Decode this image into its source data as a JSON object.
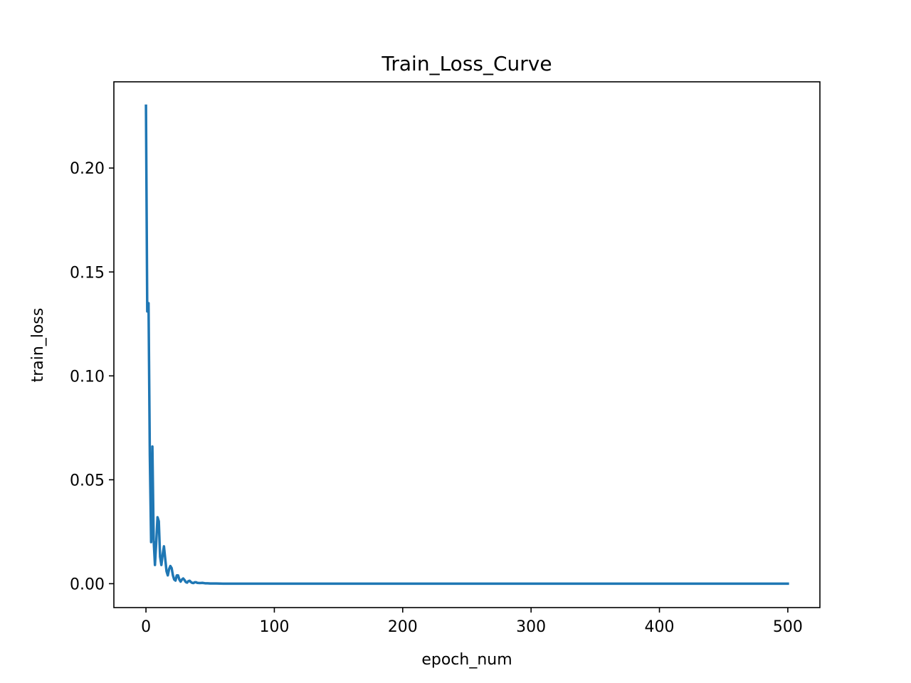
{
  "chart_data": {
    "type": "line",
    "title": "Train_Loss_Curve",
    "xlabel": "epoch_num",
    "ylabel": "train_loss",
    "xlim": [
      -25,
      525
    ],
    "ylim": [
      -0.0115,
      0.2415
    ],
    "xticks": [
      0,
      100,
      200,
      300,
      400,
      500
    ],
    "xtick_labels": [
      "0",
      "100",
      "200",
      "300",
      "400",
      "500"
    ],
    "yticks": [
      0.0,
      0.05,
      0.1,
      0.15,
      0.2
    ],
    "ytick_labels": [
      "0.00",
      "0.05",
      "0.10",
      "0.15",
      "0.20"
    ],
    "grid": false,
    "series": [
      {
        "color": "#1f77b4",
        "x": [
          0,
          1,
          2,
          3,
          4,
          5,
          6,
          7,
          8,
          9,
          10,
          11,
          12,
          13,
          14,
          15,
          16,
          17,
          18,
          19,
          20,
          21,
          22,
          23,
          24,
          25,
          26,
          27,
          28,
          29,
          30,
          31,
          32,
          33,
          34,
          35,
          36,
          37,
          38,
          39,
          40,
          42,
          44,
          46,
          48,
          50,
          55,
          60,
          65,
          70,
          80,
          100,
          150,
          200,
          250,
          300,
          350,
          400,
          450,
          500
        ],
        "values": [
          0.23,
          0.131,
          0.135,
          0.062,
          0.02,
          0.066,
          0.021,
          0.009,
          0.02,
          0.032,
          0.03,
          0.013,
          0.009,
          0.014,
          0.018,
          0.012,
          0.006,
          0.004,
          0.007,
          0.0085,
          0.0075,
          0.004,
          0.002,
          0.0015,
          0.004,
          0.004,
          0.002,
          0.001,
          0.002,
          0.0025,
          0.0018,
          0.0008,
          0.0005,
          0.0012,
          0.0014,
          0.0008,
          0.0004,
          0.0003,
          0.0007,
          0.0007,
          0.0004,
          0.0003,
          0.0004,
          0.0002,
          0.0002,
          0.0001,
          0.0001,
          0.0,
          0.0,
          0.0,
          0.0,
          0.0,
          0.0,
          0.0,
          0.0,
          0.0,
          0.0,
          0.0,
          0.0,
          0.0
        ]
      }
    ]
  }
}
